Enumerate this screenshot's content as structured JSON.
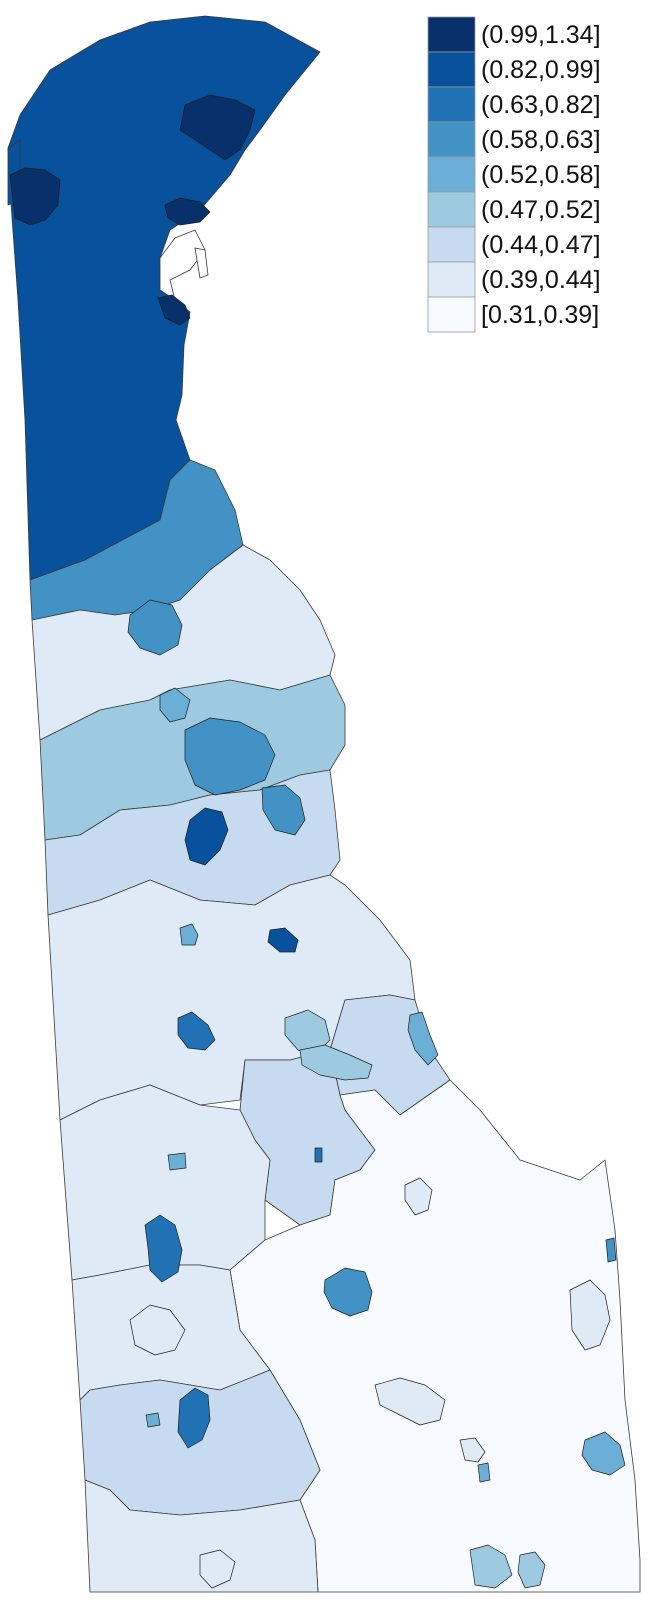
{
  "legend": {
    "bins": [
      {
        "label": "(0.99,1.34]",
        "color": "#08306b"
      },
      {
        "label": "(0.82,0.99]",
        "color": "#08519c"
      },
      {
        "label": "(0.63,0.82]",
        "color": "#2171b5"
      },
      {
        "label": "(0.58,0.63]",
        "color": "#4292c6"
      },
      {
        "label": "(0.52,0.58]",
        "color": "#6baed6"
      },
      {
        "label": "(0.47,0.52]",
        "color": "#9ecae1"
      },
      {
        "label": "(0.44,0.47]",
        "color": "#c6dbef"
      },
      {
        "label": "(0.39,0.44]",
        "color": "#deebf7"
      },
      {
        "label": "[0.31,0.39]",
        "color": "#f7fbff"
      }
    ]
  }
}
